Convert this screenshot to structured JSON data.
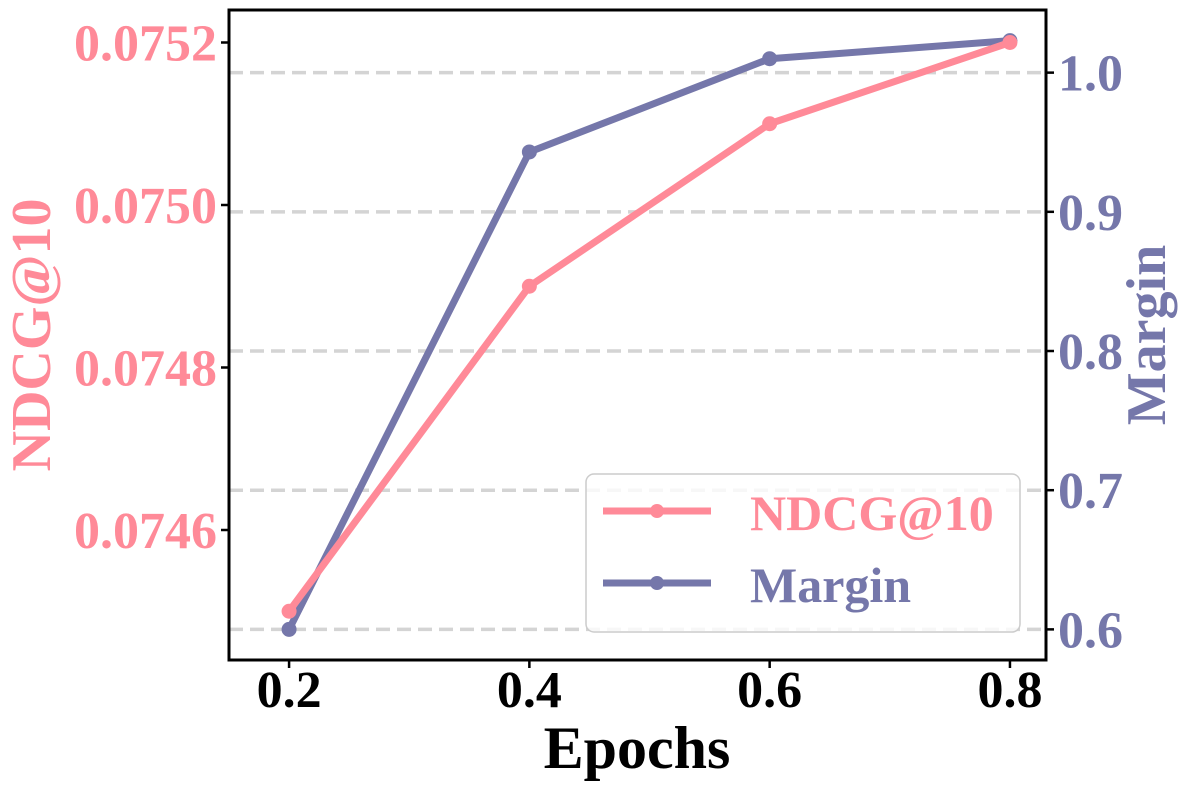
{
  "chart_data": {
    "type": "line",
    "x": [
      0.2,
      0.4,
      0.6,
      0.8
    ],
    "x_tick_labels": [
      "0.2",
      "0.4",
      "0.6",
      "0.8"
    ],
    "xlabel": "Epochs",
    "xlim": [
      0.15,
      0.83
    ],
    "series": [
      {
        "name": "NDCG@10",
        "axis": "left",
        "color": "#FF8A98",
        "values": [
          0.0745,
          0.0749,
          0.0751,
          0.0752
        ]
      },
      {
        "name": "Margin",
        "axis": "right",
        "color": "#7577AA",
        "values": [
          0.6,
          0.943,
          1.01,
          1.023
        ]
      }
    ],
    "left_axis": {
      "label": "NDCG@10",
      "ticks": [
        0.0746,
        0.0748,
        0.075,
        0.0752
      ],
      "tick_labels": [
        "0.0746",
        "0.0748",
        "0.0750",
        "0.0752"
      ],
      "ylim": [
        0.07444,
        0.07524
      ]
    },
    "right_axis": {
      "label": "Margin",
      "ticks": [
        0.6,
        0.7,
        0.8,
        0.9,
        1.0
      ],
      "tick_labels": [
        "0.6",
        "0.7",
        "0.8",
        "0.9",
        "1.0"
      ],
      "ylim": [
        0.578,
        1.045
      ]
    },
    "grid": "dashed horizontal (right axis ticks)",
    "legend": {
      "position": "bottom-right",
      "entries": [
        "NDCG@10",
        "Margin"
      ]
    }
  }
}
